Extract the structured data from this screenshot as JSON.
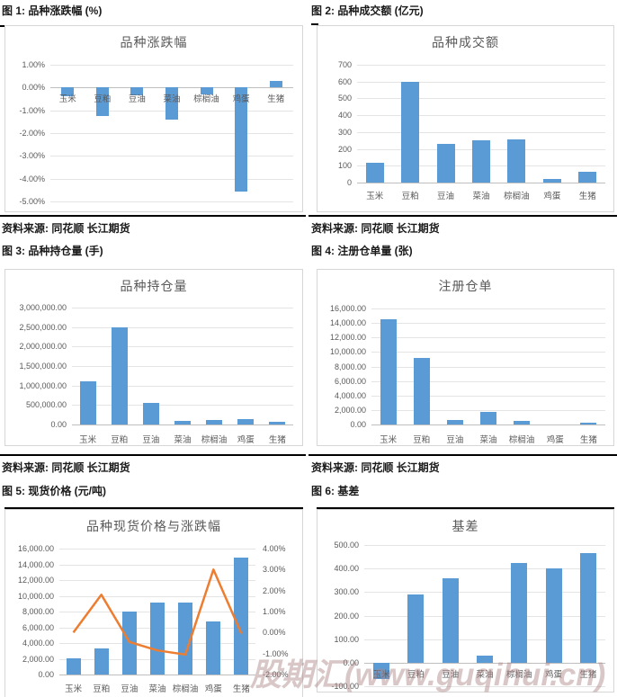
{
  "page": {
    "watermark": "股期汇(www.guqihui.cn)",
    "source_label": "资料来源: 同花顺 长江期货"
  },
  "figures": [
    {
      "caption": "图 1: 品种涨跌幅 (%)"
    },
    {
      "caption": "图 2: 品种成交额 (亿元)"
    },
    {
      "caption": "图 3: 品种持仓量 (手)"
    },
    {
      "caption": "图 4: 注册仓单量 (张)"
    },
    {
      "caption": "图 5: 现货价格 (元/吨)"
    },
    {
      "caption": "图 6: 基差"
    }
  ],
  "colors": {
    "bar": "#5B9BD5",
    "line": "#ED7D31",
    "title_text": "#595959",
    "axis_text": "#595959",
    "gridline": "#E4E4E4",
    "axis_line": "#BFBFBF",
    "divider": "#000000"
  },
  "chart_data": [
    {
      "type": "bar",
      "title": "品种涨跌幅",
      "categories": [
        "玉米",
        "豆粕",
        "豆油",
        "菜油",
        "棕榈油",
        "鸡蛋",
        "生猪"
      ],
      "values": [
        -0.4,
        -1.25,
        -0.33,
        -1.4,
        -0.3,
        -4.55,
        0.3
      ],
      "ylim": [
        -5,
        1
      ],
      "yticks": [
        "1.00%",
        "0.00%",
        "-1.00%",
        "-2.00%",
        "-3.00%",
        "-4.00%",
        "-5.00%"
      ],
      "grid": true,
      "legend": "none",
      "ylabel": "",
      "xlabel": ""
    },
    {
      "type": "bar",
      "title": "品种成交额",
      "categories": [
        "玉米",
        "豆粕",
        "豆油",
        "菜油",
        "棕榈油",
        "鸡蛋",
        "生猪"
      ],
      "values": [
        120,
        600,
        230,
        250,
        255,
        22,
        65
      ],
      "ylim": [
        0,
        700
      ],
      "yticks": [
        "700",
        "600",
        "500",
        "400",
        "300",
        "200",
        "100",
        "0"
      ],
      "grid": true,
      "legend": "none",
      "ylabel": "",
      "xlabel": ""
    },
    {
      "type": "bar",
      "title": "品种持仓量",
      "categories": [
        "玉米",
        "豆粕",
        "豆油",
        "菜油",
        "棕榈油",
        "鸡蛋",
        "生猪"
      ],
      "values": [
        1110000,
        2490000,
        560000,
        85000,
        125000,
        150000,
        65000
      ],
      "ylim": [
        0,
        3000000
      ],
      "yticks": [
        "3,000,000.00",
        "2,500,000.00",
        "2,000,000.00",
        "1,500,000.00",
        "1,000,000.00",
        "500,000.00",
        "0.00"
      ],
      "grid": true,
      "legend": "none",
      "ylabel": "",
      "xlabel": ""
    },
    {
      "type": "bar",
      "title": "注册仓单",
      "categories": [
        "玉米",
        "豆粕",
        "豆油",
        "菜油",
        "棕榈油",
        "鸡蛋",
        "生猪"
      ],
      "values": [
        14500,
        9200,
        650,
        1700,
        450,
        0,
        200
      ],
      "ylim": [
        0,
        16000
      ],
      "yticks": [
        "16,000.00",
        "14,000.00",
        "12,000.00",
        "10,000.00",
        "8,000.00",
        "6,000.00",
        "4,000.00",
        "2,000.00",
        "0.00"
      ],
      "grid": true,
      "legend": "none",
      "ylabel": "",
      "xlabel": ""
    },
    {
      "type": "bar+line",
      "title": "品种现货价格与涨跌幅",
      "categories": [
        "玉米",
        "豆粕",
        "豆油",
        "菜油",
        "棕榈油",
        "鸡蛋",
        "生猪"
      ],
      "series": [
        {
          "name": "现货价格",
          "type": "bar",
          "axis": "left",
          "values": [
            2100,
            3300,
            8000,
            9200,
            9100,
            6800,
            14900
          ]
        },
        {
          "name": "涨跌幅",
          "type": "line",
          "axis": "right",
          "values": [
            0.0,
            1.8,
            -0.45,
            -0.85,
            -1.05,
            3.0,
            -0.05
          ]
        }
      ],
      "ylim_left": [
        0,
        16000
      ],
      "ylim_right": [
        -2,
        4
      ],
      "yticks_left": [
        "16,000.00",
        "14,000.00",
        "12,000.00",
        "10,000.00",
        "8,000.00",
        "6,000.00",
        "4,000.00",
        "2,000.00",
        "0.00"
      ],
      "yticks_right": [
        "4.00%",
        "3.00%",
        "2.00%",
        "1.00%",
        "0.00%",
        "-1.00%",
        "-2.00%"
      ],
      "grid": true,
      "legend": "none",
      "ylabel": "",
      "xlabel": ""
    },
    {
      "type": "bar",
      "title": "基差",
      "categories": [
        "玉米",
        "豆粕",
        "豆油",
        "菜油",
        "棕榈油",
        "鸡蛋",
        "生猪"
      ],
      "values": [
        -70,
        290,
        358,
        30,
        425,
        400,
        465
      ],
      "ylim": [
        -100,
        500
      ],
      "yticks": [
        "500.00",
        "400.00",
        "300.00",
        "200.00",
        "100.00",
        "0.00",
        "-100.00"
      ],
      "grid": true,
      "legend": "none",
      "ylabel": "",
      "xlabel": ""
    }
  ]
}
